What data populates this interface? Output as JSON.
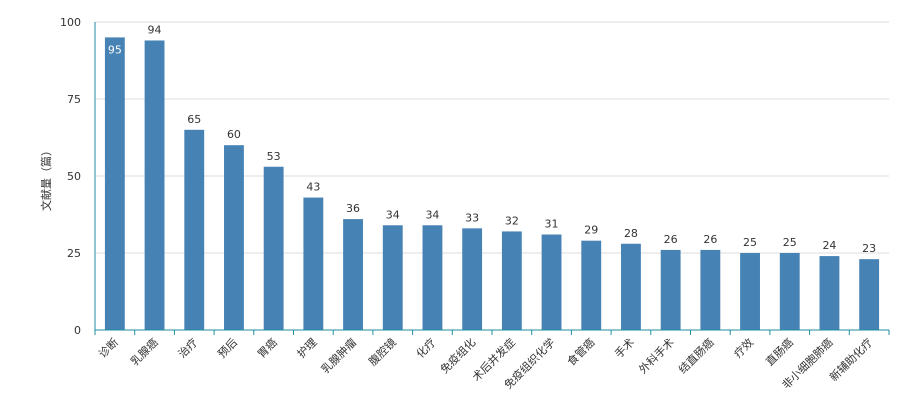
{
  "chart_data": {
    "type": "bar",
    "title": "",
    "xlabel": "",
    "ylabel": "文献量（篇）",
    "ylim": [
      0,
      100
    ],
    "yticks": [
      0,
      25,
      50,
      75,
      100
    ],
    "grid": true,
    "legend": "none",
    "bar_color": "#4682B4",
    "axis_color": "#1f8fa0",
    "grid_color": "#dddddd",
    "categories": [
      "诊断",
      "乳腺癌",
      "治疗",
      "预后",
      "胃癌",
      "护理",
      "乳腺肿瘤",
      "腹腔镜",
      "化疗",
      "免疫组化",
      "术后并发症",
      "免疫组织化学",
      "食管癌",
      "手术",
      "外科手术",
      "结直肠癌",
      "疗效",
      "直肠癌",
      "非小细胞肺癌",
      "新辅助化疗"
    ],
    "values": [
      95,
      94,
      65,
      60,
      53,
      43,
      36,
      34,
      34,
      33,
      32,
      31,
      29,
      28,
      26,
      26,
      25,
      25,
      24,
      23
    ]
  }
}
